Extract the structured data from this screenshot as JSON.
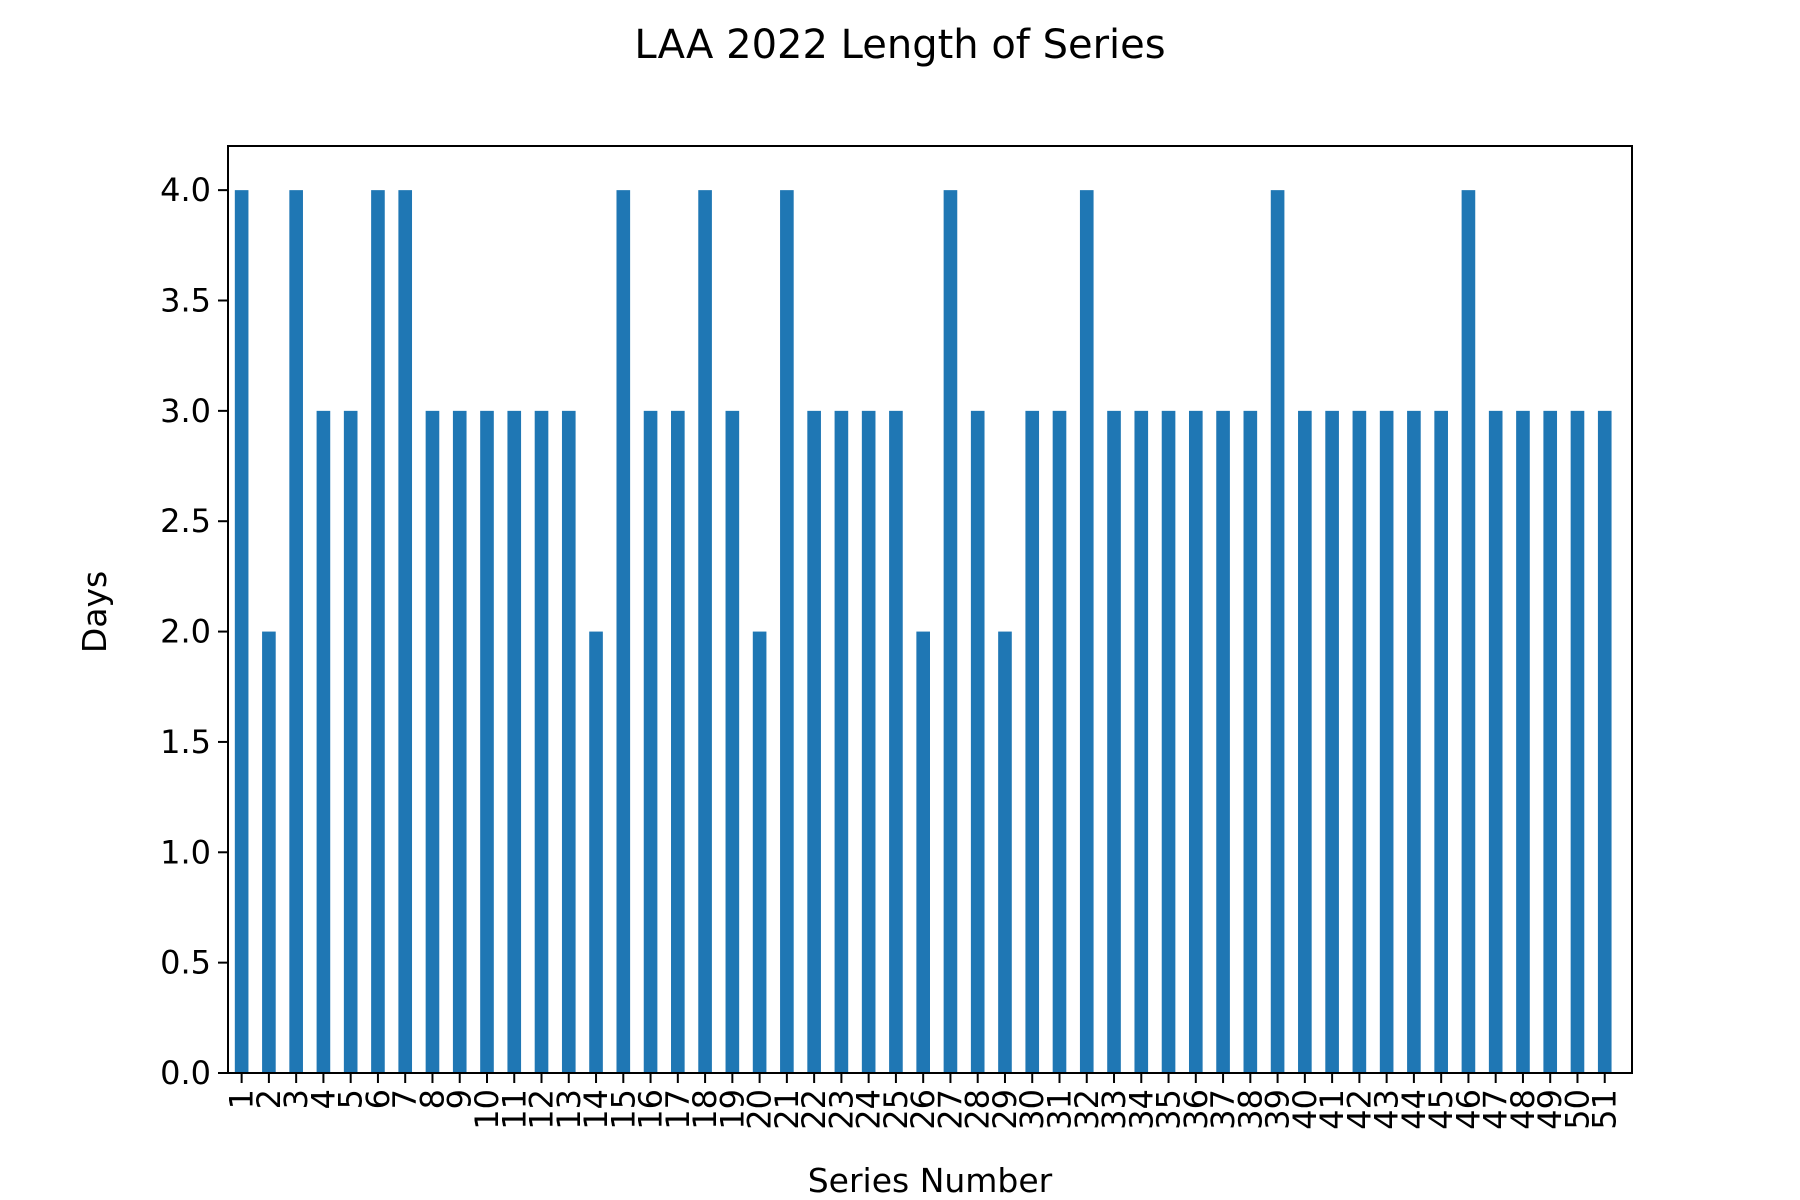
{
  "chart_data": {
    "type": "bar",
    "title": "LAA 2022 Length of Series",
    "xlabel": "Series Number",
    "ylabel": "Days",
    "ylim": [
      0,
      4.2
    ],
    "yticks": [
      "0.0",
      "0.5",
      "1.0",
      "1.5",
      "2.0",
      "2.5",
      "3.0",
      "3.5",
      "4.0"
    ],
    "grid": false,
    "legend": "none",
    "bar_color": "#1f77b4",
    "categories": [
      "1",
      "2",
      "3",
      "4",
      "5",
      "6",
      "7",
      "8",
      "9",
      "10",
      "11",
      "12",
      "13",
      "14",
      "15",
      "16",
      "17",
      "18",
      "19",
      "20",
      "21",
      "22",
      "23",
      "24",
      "25",
      "26",
      "27",
      "28",
      "29",
      "30",
      "31",
      "32",
      "33",
      "34",
      "35",
      "36",
      "37",
      "38",
      "39",
      "40",
      "41",
      "42",
      "43",
      "44",
      "45",
      "46",
      "47",
      "48",
      "49",
      "50",
      "51"
    ],
    "values": [
      4,
      2,
      4,
      3,
      3,
      4,
      4,
      3,
      3,
      3,
      3,
      3,
      3,
      2,
      4,
      3,
      3,
      4,
      3,
      2,
      4,
      3,
      3,
      3,
      3,
      2,
      4,
      3,
      2,
      3,
      3,
      4,
      3,
      3,
      3,
      3,
      3,
      3,
      4,
      3,
      3,
      3,
      3,
      3,
      3,
      4,
      3,
      3,
      3,
      3,
      3
    ]
  }
}
